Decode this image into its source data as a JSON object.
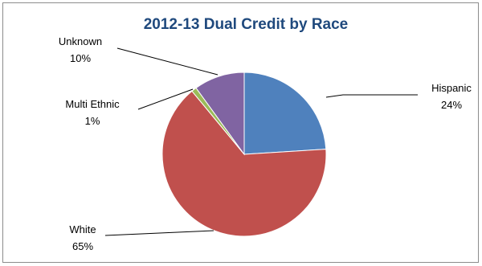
{
  "chart_data": {
    "type": "pie",
    "title": "2012-13 Dual Credit by Race",
    "slices": [
      {
        "name": "Hispanic",
        "value": 24,
        "label": "24%",
        "color": "#4f81bd"
      },
      {
        "name": "White",
        "value": 65,
        "label": "65%",
        "color": "#c0504d"
      },
      {
        "name": "Multi Ethnic",
        "value": 1,
        "label": "1%",
        "color": "#9bbb59"
      },
      {
        "name": "Unknown",
        "value": 10,
        "label": "10%",
        "color": "#8064a2"
      }
    ],
    "legend": "none",
    "data_labels": "outside with leader lines"
  }
}
